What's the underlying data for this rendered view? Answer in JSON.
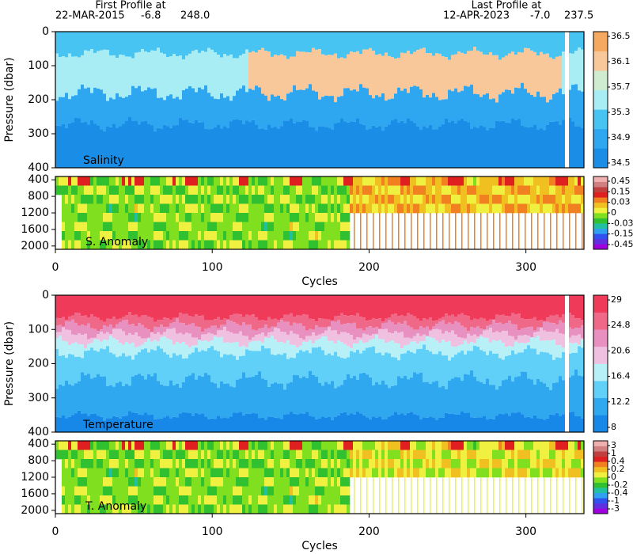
{
  "header": {
    "first_label": "First Profile at",
    "first_date": "22-MAR-2015",
    "first_lat": "-6.8",
    "first_lon": "248.0",
    "last_label": "Last Profile at",
    "last_date": "12-APR-2023",
    "last_lat": "-7.0",
    "last_lon": "237.5"
  },
  "chart_data": [
    {
      "type": "heatmap",
      "label": "Salinity",
      "ylabel": "Pressure (dbar)",
      "xlim": [
        0,
        337
      ],
      "ylim": [
        400,
        0
      ],
      "yticks": [
        0,
        100,
        200,
        300,
        400
      ],
      "colorbar": {
        "ticks": [
          34.5,
          34.9,
          35.3,
          35.7,
          36.1,
          36.5
        ],
        "colors": [
          "#1a8ee6",
          "#2ea6f0",
          "#48c4f2",
          "#a8ecf4",
          "#d0ecd0",
          "#f8c89a",
          "#f4a860"
        ]
      }
    },
    {
      "type": "anomaly",
      "label": "S. Anomaly",
      "xlim": [
        0,
        337
      ],
      "ylim": [
        2080,
        320
      ],
      "yticks": [
        400,
        800,
        1200,
        1600,
        2000
      ],
      "xticks": [
        0,
        100,
        200,
        300
      ],
      "xlabel": "Cycles",
      "colorbar": {
        "ticks": [
          -0.45,
          -0.15,
          -0.03,
          0,
          0.03,
          0.15,
          0.45
        ],
        "colors": [
          "#a000e0",
          "#6030e0",
          "#3050f0",
          "#30a0f0",
          "#20c0a0",
          "#30c030",
          "#80e020",
          "#f0f040",
          "#f0c020",
          "#f08020",
          "#e02020",
          "#c04040",
          "#d08080",
          "#f0b0b0"
        ]
      }
    },
    {
      "type": "heatmap",
      "label": "Temperature",
      "ylabel": "Pressure (dbar)",
      "xlim": [
        0,
        337
      ],
      "ylim": [
        400,
        0
      ],
      "yticks": [
        0,
        100,
        200,
        300,
        400
      ],
      "colorbar": {
        "ticks": [
          8,
          12.2,
          16.4,
          20.6,
          24.8,
          29
        ],
        "colors": [
          "#1888e8",
          "#30a8f0",
          "#60d0f8",
          "#b8f0f8",
          "#f0c0e0",
          "#e890c0",
          "#f06888",
          "#f03a5a"
        ]
      }
    },
    {
      "type": "anomaly",
      "label": "T. Anomaly",
      "xlim": [
        0,
        337
      ],
      "ylim": [
        2080,
        320
      ],
      "yticks": [
        400,
        800,
        1200,
        1600,
        2000
      ],
      "xticks": [
        0,
        100,
        200,
        300
      ],
      "xlabel": "Cycles",
      "colorbar": {
        "ticks": [
          -3,
          -1,
          -0.4,
          -0.2,
          0,
          0.2,
          0.4,
          1,
          3
        ],
        "colors": [
          "#a000e0",
          "#6030e0",
          "#3050f0",
          "#30a0f0",
          "#20c0a0",
          "#30c030",
          "#80e020",
          "#f0f040",
          "#f0c020",
          "#f08020",
          "#e02020",
          "#c04040",
          "#d08080",
          "#f0b0b0"
        ]
      }
    }
  ]
}
